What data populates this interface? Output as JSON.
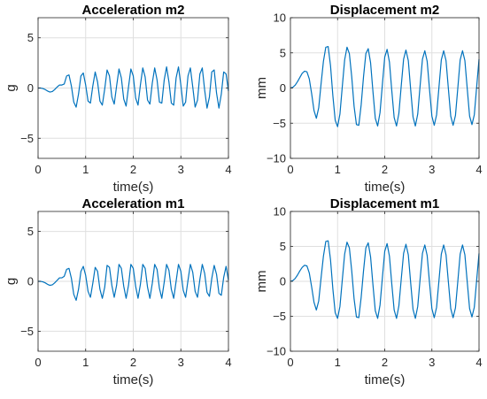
{
  "chart_data": [
    {
      "type": "line",
      "title": "Acceleration m2",
      "xlabel": "time(s)",
      "ylabel": "g",
      "xlim": [
        0,
        4
      ],
      "ylim": [
        -7,
        7
      ],
      "xticks": [
        0,
        1,
        2,
        3,
        4
      ],
      "yticks": [
        -5,
        0,
        5
      ],
      "ytick_labels": [
        "−5",
        "0",
        "5"
      ],
      "grid": true,
      "series_color": "#0072BD",
      "series": [
        {
          "x": [
            0,
            0.05,
            0.1,
            0.15,
            0.2,
            0.25,
            0.3,
            0.35,
            0.4,
            0.45,
            0.5,
            0.55,
            0.6,
            0.65,
            0.7,
            0.75,
            0.8,
            0.85,
            0.9,
            0.95,
            1.0,
            1.05,
            1.1,
            1.15,
            1.2,
            1.25,
            1.3,
            1.35,
            1.4,
            1.45,
            1.5,
            1.55,
            1.6,
            1.65,
            1.7,
            1.75,
            1.8,
            1.85,
            1.9,
            1.95,
            2.0,
            2.05,
            2.1,
            2.15,
            2.2,
            2.25,
            2.3,
            2.35,
            2.4,
            2.45,
            2.5,
            2.55,
            2.6,
            2.65,
            2.7,
            2.75,
            2.8,
            2.85,
            2.9,
            2.95,
            3.0,
            3.05,
            3.1,
            3.15,
            3.2,
            3.25,
            3.3,
            3.35,
            3.4,
            3.45,
            3.5,
            3.55,
            3.6,
            3.65,
            3.7,
            3.75,
            3.8,
            3.85,
            3.9,
            3.95,
            4.0
          ],
          "y": [
            0,
            0,
            -0.05,
            -0.15,
            -0.3,
            -0.4,
            -0.35,
            -0.15,
            0.1,
            0.3,
            0.3,
            0.4,
            1.2,
            1.3,
            0.2,
            -1.4,
            -1.9,
            -0.6,
            1.2,
            1.5,
            0.3,
            -1.3,
            -1.5,
            0.2,
            1.6,
            0.6,
            -1.3,
            -1.7,
            -0.1,
            1.8,
            1.2,
            -0.9,
            -1.6,
            0.2,
            1.9,
            1.0,
            -1.1,
            -1.8,
            0.1,
            1.9,
            1.2,
            -1.0,
            -1.7,
            0.3,
            2.0,
            1.1,
            -1.2,
            -1.6,
            0.5,
            2.0,
            0.8,
            -1.4,
            -1.5,
            0.8,
            2.1,
            0.6,
            -1.5,
            -1.7,
            1.0,
            2.1,
            0.3,
            -1.8,
            -1.4,
            1.2,
            2.0,
            0.1,
            -1.9,
            -1.2,
            1.4,
            2.0,
            -0.2,
            -2.0,
            -0.9,
            1.6,
            1.8,
            -0.5,
            -2.0,
            -0.6,
            1.6,
            1.4,
            -0.3
          ]
        }
      ]
    },
    {
      "type": "line",
      "title": "Displacement m2",
      "xlabel": "time(s)",
      "ylabel": "mm",
      "xlim": [
        0,
        4
      ],
      "ylim": [
        -10,
        10
      ],
      "xticks": [
        0,
        1,
        2,
        3,
        4
      ],
      "yticks": [
        -10,
        -5,
        0,
        5,
        10
      ],
      "ytick_labels": [
        "−10",
        "−5",
        "0",
        "5",
        "10"
      ],
      "grid": true,
      "series_color": "#0072BD",
      "series": [
        {
          "x": [
            0,
            0.05,
            0.1,
            0.15,
            0.2,
            0.25,
            0.3,
            0.35,
            0.4,
            0.45,
            0.5,
            0.55,
            0.6,
            0.65,
            0.7,
            0.75,
            0.8,
            0.85,
            0.9,
            0.95,
            1.0,
            1.05,
            1.1,
            1.15,
            1.2,
            1.25,
            1.3,
            1.35,
            1.4,
            1.45,
            1.5,
            1.55,
            1.6,
            1.65,
            1.7,
            1.75,
            1.8,
            1.85,
            1.9,
            1.95,
            2.0,
            2.05,
            2.1,
            2.15,
            2.2,
            2.25,
            2.3,
            2.35,
            2.4,
            2.45,
            2.5,
            2.55,
            2.6,
            2.65,
            2.7,
            2.75,
            2.8,
            2.85,
            2.9,
            2.95,
            3.0,
            3.05,
            3.1,
            3.15,
            3.2,
            3.25,
            3.3,
            3.35,
            3.4,
            3.45,
            3.5,
            3.55,
            3.6,
            3.65,
            3.7,
            3.75,
            3.8,
            3.85,
            3.9,
            3.95,
            4.0
          ],
          "y": [
            0,
            0.1,
            0.4,
            0.9,
            1.5,
            2.1,
            2.4,
            2.3,
            1.3,
            -0.8,
            -3.2,
            -4.3,
            -2.8,
            0.6,
            3.8,
            5.8,
            5.9,
            3.2,
            -1.1,
            -4.6,
            -5.5,
            -3.7,
            0.2,
            4.0,
            5.8,
            4.9,
            1.6,
            -2.6,
            -5.2,
            -5.3,
            -2.4,
            1.6,
            4.9,
            5.6,
            3.6,
            -0.5,
            -4.3,
            -5.4,
            -3.5,
            0.5,
            4.4,
            5.5,
            3.7,
            -0.4,
            -4.2,
            -5.4,
            -3.6,
            0.3,
            4.1,
            5.4,
            3.9,
            -0.2,
            -4.1,
            -5.4,
            -3.7,
            0.3,
            4.1,
            5.3,
            3.8,
            -0.2,
            -4.0,
            -5.3,
            -3.8,
            0.1,
            4.0,
            5.3,
            3.9,
            -0.1,
            -4.0,
            -5.3,
            -3.9,
            0.0,
            4.0,
            5.3,
            3.9,
            -0.1,
            -4.0,
            -5.2,
            -3.8,
            0.2,
            4.1
          ]
        }
      ]
    },
    {
      "type": "line",
      "title": "Acceleration m1",
      "xlabel": "time(s)",
      "ylabel": "g",
      "xlim": [
        0,
        4
      ],
      "ylim": [
        -7,
        7
      ],
      "xticks": [
        0,
        1,
        2,
        3,
        4
      ],
      "yticks": [
        -5,
        0,
        5
      ],
      "ytick_labels": [
        "−5",
        "0",
        "5"
      ],
      "grid": true,
      "series_color": "#0072BD",
      "series": [
        {
          "x": [
            0,
            0.05,
            0.1,
            0.15,
            0.2,
            0.25,
            0.3,
            0.35,
            0.4,
            0.45,
            0.5,
            0.55,
            0.6,
            0.65,
            0.7,
            0.75,
            0.8,
            0.85,
            0.9,
            0.95,
            1.0,
            1.05,
            1.1,
            1.15,
            1.2,
            1.25,
            1.3,
            1.35,
            1.4,
            1.45,
            1.5,
            1.55,
            1.6,
            1.65,
            1.7,
            1.75,
            1.8,
            1.85,
            1.9,
            1.95,
            2.0,
            2.05,
            2.1,
            2.15,
            2.2,
            2.25,
            2.3,
            2.35,
            2.4,
            2.45,
            2.5,
            2.55,
            2.6,
            2.65,
            2.7,
            2.75,
            2.8,
            2.85,
            2.9,
            2.95,
            3.0,
            3.05,
            3.1,
            3.15,
            3.2,
            3.25,
            3.3,
            3.35,
            3.4,
            3.45,
            3.5,
            3.55,
            3.6,
            3.65,
            3.7,
            3.75,
            3.8,
            3.85,
            3.9,
            3.95,
            4.0
          ],
          "y": [
            0,
            0,
            -0.05,
            -0.15,
            -0.3,
            -0.4,
            -0.35,
            -0.15,
            0.1,
            0.35,
            0.35,
            0.5,
            1.2,
            1.3,
            0.3,
            -1.3,
            -1.9,
            -0.8,
            1.0,
            1.5,
            0.6,
            -1.0,
            -1.6,
            -0.2,
            1.4,
            1.0,
            -0.8,
            -1.7,
            -0.6,
            1.6,
            1.4,
            -0.4,
            -1.6,
            -0.4,
            1.7,
            1.3,
            -0.5,
            -1.7,
            -0.4,
            1.7,
            1.3,
            -0.5,
            -1.7,
            -0.3,
            1.7,
            1.3,
            -0.6,
            -1.7,
            -0.2,
            1.7,
            1.2,
            -0.7,
            -1.7,
            -0.1,
            1.7,
            1.1,
            -0.8,
            -1.7,
            0.0,
            1.7,
            1.0,
            -0.9,
            -1.6,
            0.1,
            1.7,
            0.9,
            -1.0,
            -1.6,
            0.2,
            1.7,
            0.8,
            -1.1,
            -1.5,
            0.3,
            1.6,
            0.7,
            -1.2,
            -1.4,
            0.4,
            1.5,
            0.1
          ]
        }
      ]
    },
    {
      "type": "line",
      "title": "Displacement m1",
      "xlabel": "time(s)",
      "ylabel": "mm",
      "xlim": [
        0,
        4
      ],
      "ylim": [
        -10,
        10
      ],
      "xticks": [
        0,
        1,
        2,
        3,
        4
      ],
      "yticks": [
        -10,
        -5,
        0,
        5,
        10
      ],
      "ytick_labels": [
        "−10",
        "−5",
        "0",
        "5",
        "10"
      ],
      "grid": true,
      "series_color": "#0072BD",
      "series": [
        {
          "x": [
            0,
            0.05,
            0.1,
            0.15,
            0.2,
            0.25,
            0.3,
            0.35,
            0.4,
            0.45,
            0.5,
            0.55,
            0.6,
            0.65,
            0.7,
            0.75,
            0.8,
            0.85,
            0.9,
            0.95,
            1.0,
            1.05,
            1.1,
            1.15,
            1.2,
            1.25,
            1.3,
            1.35,
            1.4,
            1.45,
            1.5,
            1.55,
            1.6,
            1.65,
            1.7,
            1.75,
            1.8,
            1.85,
            1.9,
            1.95,
            2.0,
            2.05,
            2.1,
            2.15,
            2.2,
            2.25,
            2.3,
            2.35,
            2.4,
            2.45,
            2.5,
            2.55,
            2.6,
            2.65,
            2.7,
            2.75,
            2.8,
            2.85,
            2.9,
            2.95,
            3.0,
            3.05,
            3.1,
            3.15,
            3.2,
            3.25,
            3.3,
            3.35,
            3.4,
            3.45,
            3.5,
            3.55,
            3.6,
            3.65,
            3.7,
            3.75,
            3.8,
            3.85,
            3.9,
            3.95,
            4.0
          ],
          "y": [
            0,
            0.1,
            0.4,
            0.9,
            1.5,
            2.0,
            2.3,
            2.2,
            1.2,
            -0.8,
            -3.0,
            -4.1,
            -2.8,
            0.5,
            3.6,
            5.7,
            5.8,
            3.1,
            -1.1,
            -4.5,
            -5.3,
            -3.6,
            0.2,
            3.9,
            5.6,
            4.8,
            1.5,
            -2.5,
            -5.1,
            -5.2,
            -2.3,
            1.5,
            4.8,
            5.5,
            3.5,
            -0.5,
            -4.2,
            -5.3,
            -3.4,
            0.5,
            4.3,
            5.4,
            3.6,
            -0.4,
            -4.1,
            -5.3,
            -3.5,
            0.3,
            4.0,
            5.3,
            3.8,
            -0.2,
            -4.0,
            -5.3,
            -3.6,
            0.3,
            4.0,
            5.2,
            3.7,
            -0.2,
            -3.9,
            -5.2,
            -3.7,
            0.1,
            3.9,
            5.2,
            3.8,
            -0.1,
            -3.9,
            -5.2,
            -3.8,
            0.0,
            3.9,
            5.2,
            3.8,
            -0.1,
            -3.9,
            -5.1,
            -3.7,
            0.2,
            4.0
          ]
        }
      ]
    }
  ]
}
